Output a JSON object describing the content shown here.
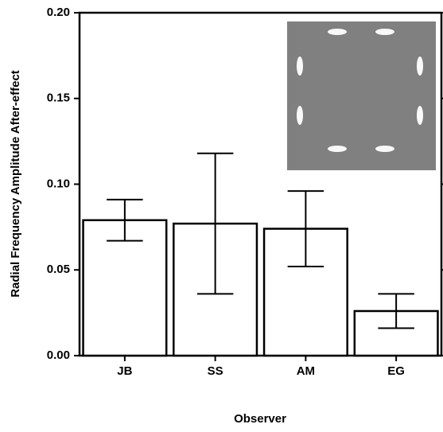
{
  "chart_data": {
    "type": "bar",
    "x_label": "Observer",
    "y_label": "Radial Frequency Amplitude After-effect",
    "categories": [
      "JB",
      "SS",
      "AM",
      "EG"
    ],
    "values": [
      0.079,
      0.077,
      0.074,
      0.026
    ],
    "errors": [
      0.012,
      0.041,
      0.022,
      0.01
    ],
    "color": "#ffffff",
    "ylim": [
      0,
      0.2
    ],
    "yticks": [
      {
        "value": 0,
        "label": "0.00"
      },
      {
        "value": 0.05,
        "label": "0.05"
      },
      {
        "value": 0.1,
        "label": "0.10"
      },
      {
        "value": 0.15,
        "label": "0.15"
      },
      {
        "value": 0.2,
        "label": "0.20"
      }
    ],
    "grid": false
  }
}
